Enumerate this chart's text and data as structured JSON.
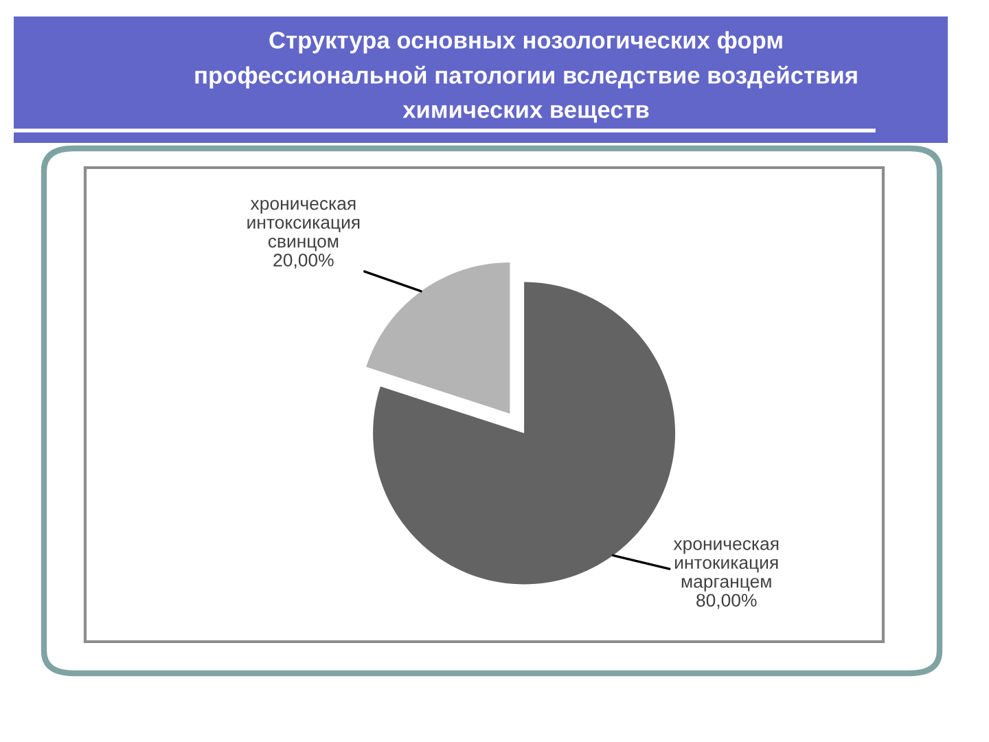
{
  "chart_data": {
    "type": "pie",
    "title": "Структура основных нозологических форм\nпрофессиональной патологии вследствие воздействия\nхимических веществ",
    "categories": [
      "хроническая\nинтоксикация\nсвинцом",
      "хроническая\nинтокикация\nмарганцем"
    ],
    "values": [
      20,
      80
    ],
    "colors": [
      "#b4b4b4",
      "#636363"
    ],
    "value_labels": [
      "20,00%",
      "80,00%"
    ]
  }
}
